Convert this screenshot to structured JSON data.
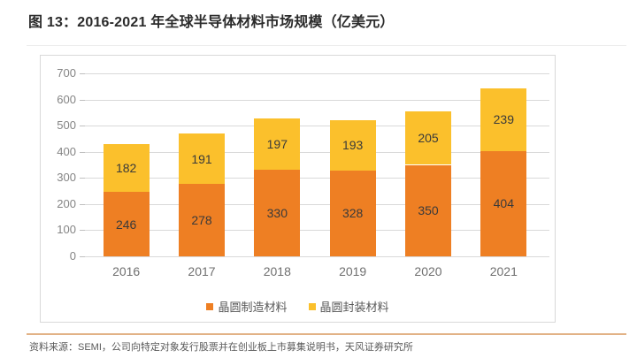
{
  "page": {
    "title": "图 13：2016-2021 年全球半导体材料市场规模（亿美元）",
    "source": "资料来源：SEMI，公司向特定对象发行股票并在创业板上市募集说明书，天风证券研究所"
  },
  "colors": {
    "manufacturing_orange": "#EE7F23",
    "packaging_yellow": "#FBC02C",
    "gridline": "#D9D9D9",
    "frame_border": "#D9D9D9",
    "y_axis_label": "#848484",
    "x_axis_label": "#6F6F6F",
    "value_label": "#3A3A3A",
    "legend_text": "#595959",
    "source_divider": "#E2B286",
    "source_text": "#595959"
  },
  "chart_data": {
    "type": "bar",
    "stacked": true,
    "title": "图 13：2016-2021 年全球半导体材料市场规模（亿美元）",
    "unit": "亿美元",
    "categories": [
      "2016",
      "2017",
      "2018",
      "2019",
      "2020",
      "2021"
    ],
    "series": [
      {
        "name": "晶圆制造材料",
        "color": "#EE7F23",
        "values": [
          246,
          278,
          330,
          328,
          350,
          404
        ]
      },
      {
        "name": "晶圆封装材料",
        "color": "#FBC02C",
        "values": [
          182,
          191,
          197,
          193,
          205,
          239
        ]
      }
    ],
    "totals": [
      428,
      469,
      527,
      521,
      555,
      643
    ],
    "ylim": [
      0,
      700
    ],
    "yticks": [
      0,
      100,
      200,
      300,
      400,
      500,
      600,
      700
    ],
    "xlabel": "",
    "ylabel": "",
    "grid": true,
    "legend_position": "bottom-center",
    "value_labels": "center"
  }
}
